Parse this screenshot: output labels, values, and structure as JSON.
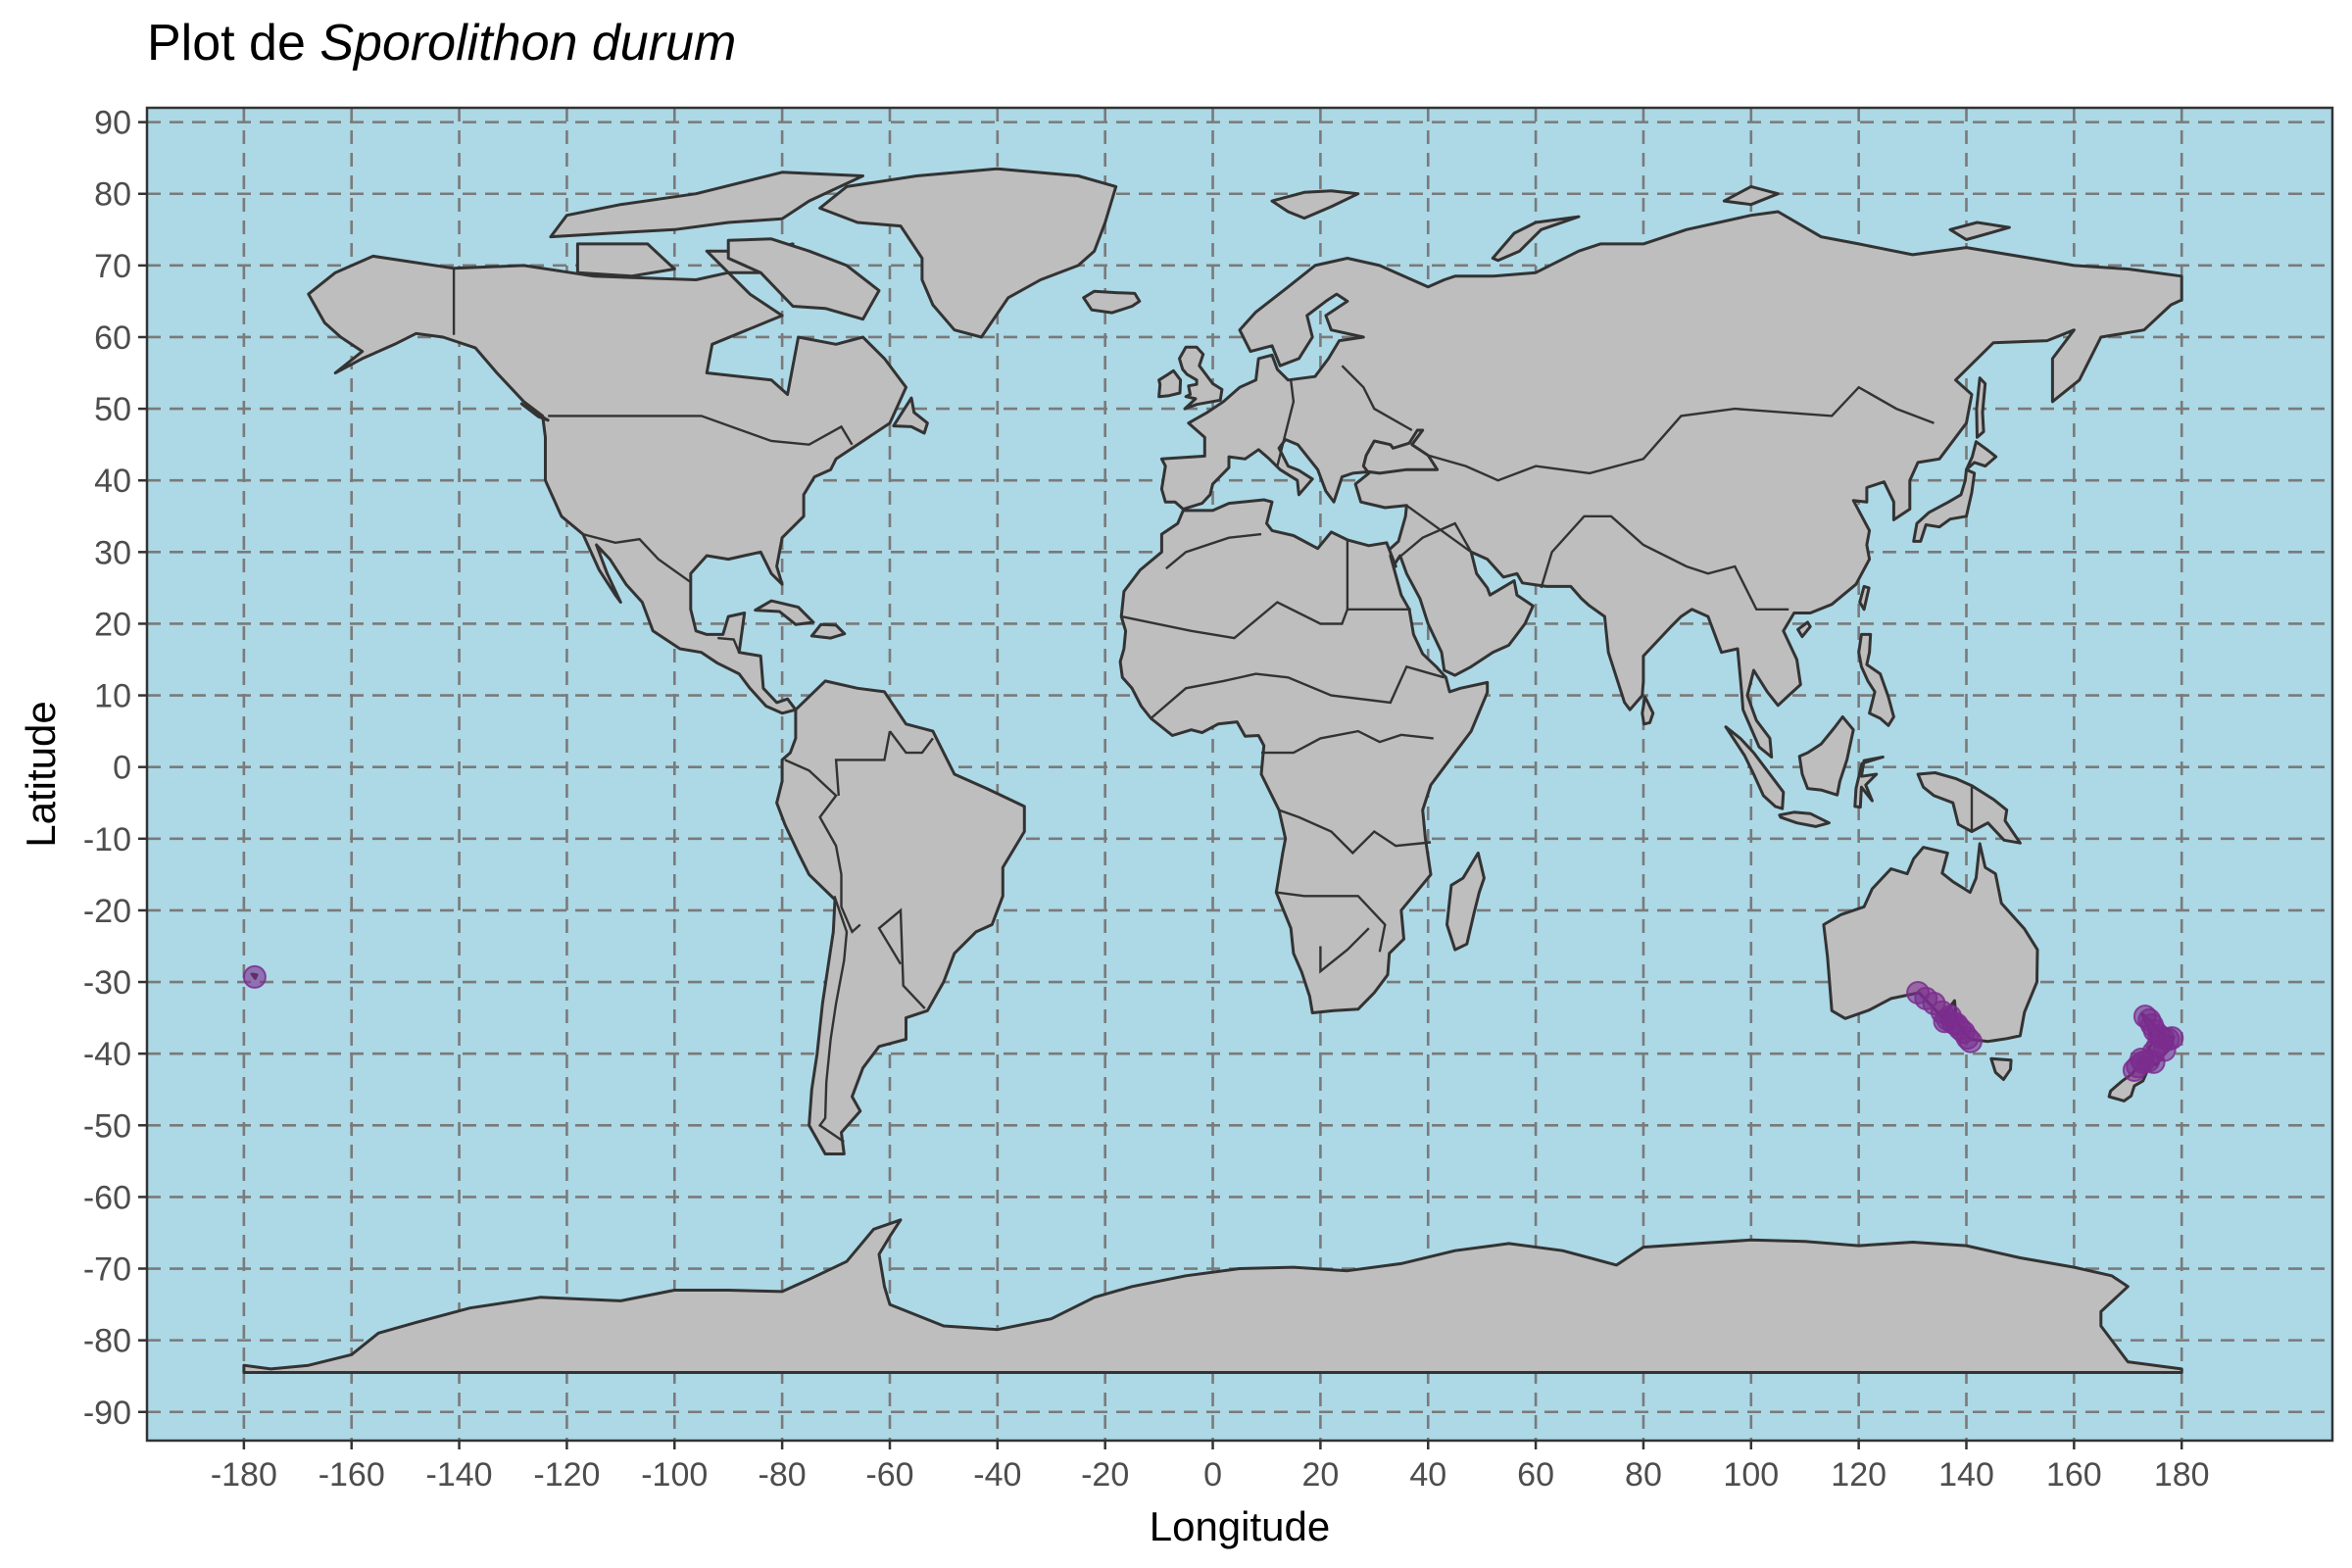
{
  "title": {
    "prefix": "Plot de ",
    "species": "Sporolithon durum"
  },
  "colors": {
    "ocean": "#add8e6",
    "land": "#bebebe",
    "outline": "#333333",
    "grid": "#7a7a7a",
    "point": "#7b2d8e"
  },
  "chart_data": {
    "type": "scatter",
    "xlabel": "Longitude",
    "ylabel": "Latitude",
    "xlim": [
      -198,
      208
    ],
    "ylim": [
      -94,
      92
    ],
    "xticks": [
      -180,
      -160,
      -140,
      -120,
      -100,
      -80,
      -60,
      -40,
      -20,
      0,
      20,
      40,
      60,
      80,
      100,
      120,
      140,
      160,
      180
    ],
    "yticks": [
      90,
      80,
      70,
      60,
      50,
      40,
      30,
      20,
      10,
      0,
      -10,
      -20,
      -30,
      -40,
      -50,
      -60,
      -70,
      -80,
      -90
    ],
    "grid": true,
    "points": [
      {
        "lon": -178,
        "lat": -29.3
      },
      {
        "lon": 131,
        "lat": -31.5
      },
      {
        "lon": 132.5,
        "lat": -32.3
      },
      {
        "lon": 134,
        "lat": -33
      },
      {
        "lon": 135.5,
        "lat": -34.2
      },
      {
        "lon": 136.5,
        "lat": -35.2
      },
      {
        "lon": 137.5,
        "lat": -35.7
      },
      {
        "lon": 138.2,
        "lat": -35.9
      },
      {
        "lon": 138.8,
        "lat": -36.5
      },
      {
        "lon": 139.5,
        "lat": -37
      },
      {
        "lon": 140.2,
        "lat": -37.8
      },
      {
        "lon": 140.8,
        "lat": -38.3
      },
      {
        "lon": 136,
        "lat": -35.5
      },
      {
        "lon": 137,
        "lat": -34.8
      },
      {
        "lon": 173.2,
        "lat": -34.8
      },
      {
        "lon": 174,
        "lat": -35.3
      },
      {
        "lon": 174.5,
        "lat": -36
      },
      {
        "lon": 175,
        "lat": -36.8
      },
      {
        "lon": 175.8,
        "lat": -37.5
      },
      {
        "lon": 176.5,
        "lat": -37.8
      },
      {
        "lon": 177.5,
        "lat": -38
      },
      {
        "lon": 178.2,
        "lat": -37.8
      },
      {
        "lon": 175.5,
        "lat": -39
      },
      {
        "lon": 174.8,
        "lat": -39.8
      },
      {
        "lon": 174.8,
        "lat": -41.2
      },
      {
        "lon": 173.8,
        "lat": -41
      },
      {
        "lon": 172.8,
        "lat": -41.2
      },
      {
        "lon": 171.8,
        "lat": -41.8
      },
      {
        "lon": 171.2,
        "lat": -42.3
      },
      {
        "lon": 172.5,
        "lat": -40.8
      },
      {
        "lon": 176.8,
        "lat": -39.5
      }
    ]
  }
}
